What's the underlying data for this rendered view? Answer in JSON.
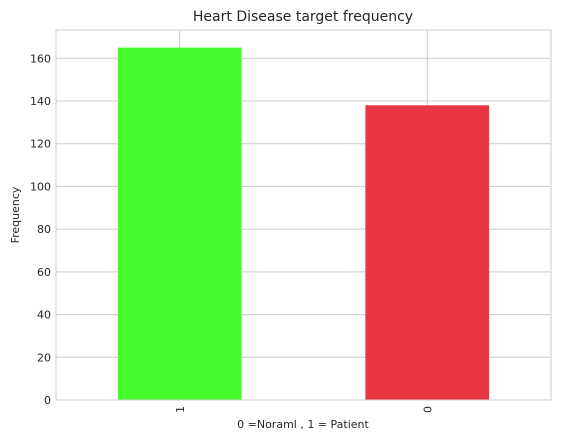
{
  "chart_data": {
    "type": "bar",
    "title": "Heart Disease target frequency",
    "xlabel": "0 =Noraml , 1 = Patient",
    "ylabel": "Frequency",
    "categories": [
      "1",
      "0"
    ],
    "values": [
      165,
      138
    ],
    "bar_colors": [
      "#44fc2c",
      "#ea3643"
    ],
    "ylim": [
      0,
      173.25
    ],
    "yticks": [
      0,
      20,
      40,
      60,
      80,
      100,
      120,
      140,
      160
    ],
    "grid": true,
    "x_tick_rotation": 90
  }
}
